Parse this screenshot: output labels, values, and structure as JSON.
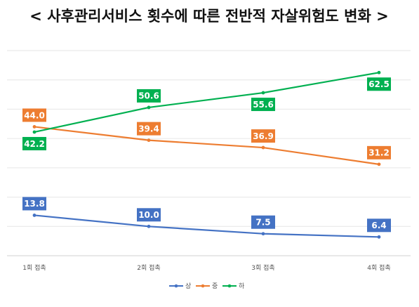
{
  "chart_data": {
    "type": "line",
    "title": "< 사후관리서비스 횟수에 따른 전반적 자살위험도 변화 >",
    "categories": [
      "1회 접촉",
      "2회 접촉",
      "3회 접촉",
      "4회 접촉"
    ],
    "series": [
      {
        "name": "상",
        "color": "#4472C4",
        "values": [
          13.8,
          10.0,
          7.5,
          6.4
        ]
      },
      {
        "name": "중",
        "color": "#ED7D31",
        "values": [
          44.0,
          39.4,
          36.9,
          31.2
        ]
      },
      {
        "name": "하",
        "color": "#00B050",
        "values": [
          42.2,
          50.6,
          55.6,
          62.5
        ]
      }
    ],
    "ylim": [
      0,
      70
    ],
    "grid": true,
    "legend": "bottom",
    "xlabel": "",
    "ylabel": ""
  }
}
